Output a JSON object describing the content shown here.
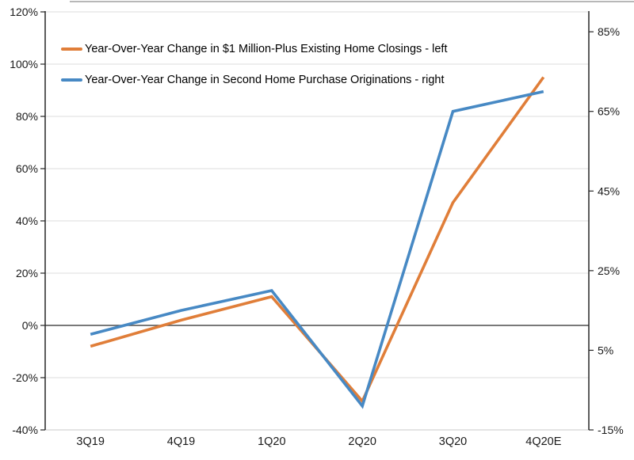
{
  "chart_data": {
    "type": "line",
    "categories": [
      "3Q19",
      "4Q19",
      "1Q20",
      "2Q20",
      "3Q20",
      "4Q20E"
    ],
    "series": [
      {
        "name": "Year-Over-Year Change in $1 Million-Plus Existing Home Closings - left",
        "axis": "left",
        "color": "#E07E39",
        "values": [
          -8,
          2,
          11,
          -29,
          47,
          95
        ]
      },
      {
        "name": "Year-Over-Year Change in Second Home Purchase Originations - right",
        "axis": "right",
        "color": "#4789C4",
        "values": [
          9,
          15,
          20,
          -9,
          65,
          70
        ]
      }
    ],
    "axes": {
      "left": {
        "min": -40,
        "max": 120,
        "tick_values": [
          120,
          100,
          80,
          60,
          40,
          20,
          0,
          -20,
          -40
        ],
        "tick_labels": [
          "120%",
          "100%",
          "80%",
          "60%",
          "40%",
          "20%",
          "0%",
          "-20%",
          "-40%"
        ]
      },
      "right": {
        "min": -15,
        "max": 90,
        "tick_values": [
          85,
          65,
          45,
          25,
          5,
          -15
        ],
        "tick_labels": [
          "85%",
          "65%",
          "45%",
          "25%",
          "5%",
          "-15%"
        ]
      }
    },
    "grid": true,
    "legend_position": "top-left-inside",
    "colors": {
      "gridline": "#dcdcdc",
      "zero_line": "#4d4d4d",
      "axis_spine": "#262626",
      "bottom_line": "#c8c8c8",
      "top_border": "#707070",
      "text": "#1a1a1a"
    }
  }
}
